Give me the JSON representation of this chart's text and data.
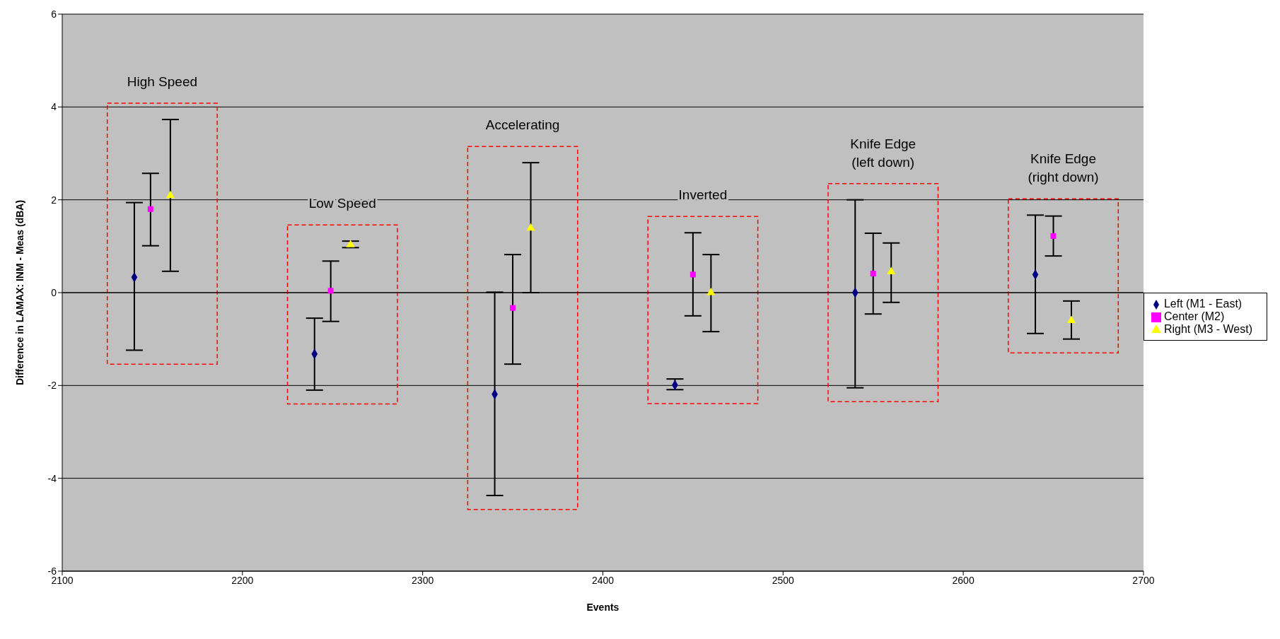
{
  "chart_data": {
    "type": "scatter",
    "xlabel": "Events",
    "ylabel": "Difference in LAMAX: INM - Meas (dBA)",
    "xlim": [
      2100,
      2700
    ],
    "xticks": [
      2100,
      2200,
      2300,
      2400,
      2500,
      2600,
      2700
    ],
    "ylim": [
      -6,
      6
    ],
    "yticks": [
      -6,
      -4,
      -2,
      0,
      2,
      4,
      6
    ],
    "grid": "y",
    "legend": "right",
    "series": [
      {
        "name": "Left (M1 - East)",
        "color": "#000080",
        "marker": "diamond",
        "x": [
          2140,
          2240,
          2340,
          2440,
          2540,
          2640
        ],
        "values": [
          0.33,
          -1.32,
          -2.19,
          -1.99,
          0,
          0.39
        ],
        "errors": [
          [
            -1.24,
            1.94
          ],
          [
            -2.1,
            -0.55
          ],
          [
            -4.37,
            0.01
          ],
          [
            -2.09,
            -1.86
          ],
          [
            -2.05,
            2.0
          ],
          [
            -0.88,
            1.67
          ]
        ]
      },
      {
        "name": "Center (M2)",
        "color": "#ff00ff",
        "marker": "square",
        "x": [
          2149,
          2249,
          2350,
          2450,
          2550,
          2650
        ],
        "values": [
          1.8,
          0.04,
          -0.33,
          0.39,
          0.41,
          1.22
        ],
        "errors": [
          [
            1.01,
            2.57
          ],
          [
            -0.62,
            0.68
          ],
          [
            -1.54,
            0.82
          ],
          [
            -0.5,
            1.29
          ],
          [
            -0.46,
            1.28
          ],
          [
            0.79,
            1.65
          ]
        ]
      },
      {
        "name": "Right (M3 - West)",
        "color": "#ffff00",
        "marker": "triangle",
        "x": [
          2160,
          2260,
          2360,
          2460,
          2560,
          2660
        ],
        "values": [
          2.09,
          1.03,
          1.39,
          0,
          0.45,
          -0.6
        ],
        "errors": [
          [
            0.46,
            3.73
          ],
          [
            0.97,
            1.11
          ],
          [
            0,
            2.8
          ],
          [
            -0.84,
            0.82
          ],
          [
            -0.21,
            1.07
          ],
          [
            -1.0,
            -0.18
          ]
        ]
      }
    ],
    "annotations": [
      "High Speed",
      "Low Speed",
      "Accelerating",
      "Inverted",
      "Knife Edge\n(left down)",
      "Knife Edge\n(right down)"
    ]
  }
}
